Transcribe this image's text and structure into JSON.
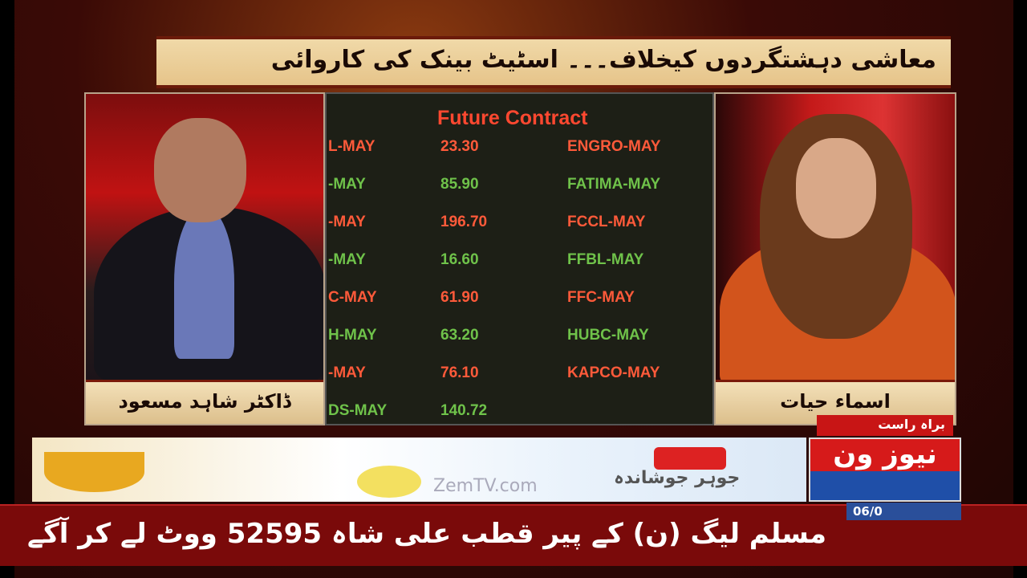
{
  "headline": "معاشی دہشتگردوں کیخلاف۔۔۔ اسٹیٹ بینک کی کاروائی",
  "guest_name": "ڈاکٹر شاہد مسعود",
  "host_name": "اسماء حیات",
  "board": {
    "title": "Future Contract",
    "rows": [
      {
        "left": "L-MAY",
        "value": "23.30",
        "right": "ENGRO-MAY",
        "lc": "red",
        "vc": "red",
        "rc": "red"
      },
      {
        "left": "-MAY",
        "value": "85.90",
        "right": "FATIMA-MAY",
        "lc": "green",
        "vc": "green",
        "rc": "green"
      },
      {
        "left": "-MAY",
        "value": "196.70",
        "right": "FCCL-MAY",
        "lc": "red",
        "vc": "red",
        "rc": "red"
      },
      {
        "left": "-MAY",
        "value": "16.60",
        "right": "FFBL-MAY",
        "lc": "green",
        "vc": "green",
        "rc": "green"
      },
      {
        "left": "C-MAY",
        "value": "61.90",
        "right": "FFC-MAY",
        "lc": "red",
        "vc": "red",
        "rc": "red"
      },
      {
        "left": "H-MAY",
        "value": "63.20",
        "right": "HUBC-MAY",
        "lc": "green",
        "vc": "green",
        "rc": "green"
      },
      {
        "left": "-MAY",
        "value": "76.10",
        "right": "KAPCO-MAY",
        "lc": "red",
        "vc": "red",
        "rc": "red"
      },
      {
        "left": "DS-MAY",
        "value": "140.72",
        "right": "",
        "lc": "green",
        "vc": "green",
        "rc": "green"
      }
    ]
  },
  "ad": {
    "watermark": "ZemTV.com",
    "brand": "جوہر جوشاندہ"
  },
  "live_label": "براہ راست",
  "logo": "نیوز ون",
  "time": "06/0",
  "ticker": "مسلم لیگ (ن) کے پیر قطب علی شاہ 52595 ووٹ لے کر آگے",
  "colors": {
    "red": "#ff5a3a",
    "green": "#6fc24a",
    "ticker_bg": "#7a0a0a"
  }
}
